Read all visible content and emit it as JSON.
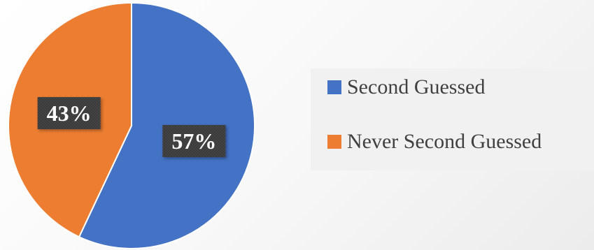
{
  "chart_data": {
    "type": "pie",
    "title": "",
    "slices": [
      {
        "label": "Second Guessed",
        "value": 57,
        "data_label": "57%",
        "color": "#4472c4"
      },
      {
        "label": "Never Second Guessed",
        "value": 43,
        "data_label": "43%",
        "color": "#ed7d31"
      }
    ],
    "legend": {
      "position": "right",
      "entries": [
        "Second Guessed",
        "Never Second Guessed"
      ]
    },
    "data_label_style": {
      "background": "#3a3a3a",
      "text_color": "#ffffff"
    }
  }
}
